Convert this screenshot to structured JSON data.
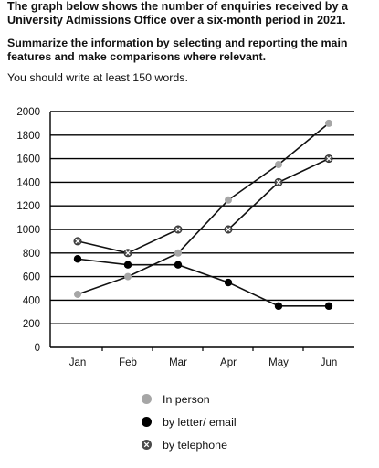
{
  "task": {
    "title": "The graph below shows the number of enquiries received by a University Admissions Office over a six-month period in 2021.",
    "instruction": "Summarize the information by selecting and reporting the main features and make comparisons where relevant.",
    "word_requirement": "You should write at least 150 words."
  },
  "chart_data": {
    "type": "line",
    "categories": [
      "Jan",
      "Feb",
      "Mar",
      "Apr",
      "May",
      "Jun"
    ],
    "series": [
      {
        "name": "In person",
        "values": [
          450,
          600,
          800,
          1250,
          1550,
          1900
        ],
        "color": "#a6a6a6",
        "marker": "gray-dot"
      },
      {
        "name": "by letter/ email",
        "values": [
          750,
          700,
          700,
          550,
          350,
          350
        ],
        "color": "#000000",
        "marker": "black-dot"
      },
      {
        "name": "by telephone",
        "values": [
          900,
          800,
          1000,
          1000,
          1400,
          1600
        ],
        "color": "#555555",
        "marker": "x-circle"
      }
    ],
    "ylim": [
      0,
      2000
    ],
    "yticks": [
      "0",
      "200",
      "400",
      "600",
      "800",
      "1000",
      "1200",
      "1400",
      "1600",
      "1800",
      "2000"
    ],
    "grid": true,
    "legend_position": "bottom"
  }
}
